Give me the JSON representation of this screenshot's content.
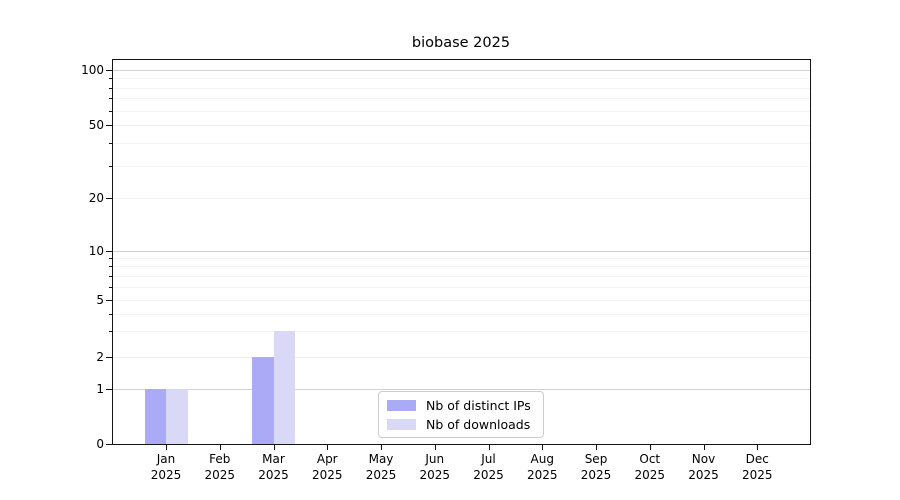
{
  "chart_data": {
    "type": "bar",
    "title": "biobase 2025",
    "categories": [
      "Jan",
      "Feb",
      "Mar",
      "Apr",
      "May",
      "Jun",
      "Jul",
      "Aug",
      "Sep",
      "Oct",
      "Nov",
      "Dec"
    ],
    "category_sublabel": "2025",
    "series": [
      {
        "name": "Nb of distinct IPs",
        "color": "#aaaaf7",
        "values": [
          1,
          0,
          2,
          0,
          0,
          0,
          0,
          0,
          0,
          0,
          0,
          0
        ]
      },
      {
        "name": "Nb of downloads",
        "color": "#d9d9f7",
        "values": [
          1,
          0,
          3,
          0,
          0,
          0,
          0,
          0,
          0,
          0,
          0,
          0
        ]
      }
    ],
    "xlabel": "",
    "ylabel": "",
    "y_axis": {
      "scale": "log-like (0 baseline)",
      "tick_values": [
        0,
        1,
        2,
        5,
        10,
        20,
        50,
        100
      ],
      "tick_labels": [
        "0",
        "1",
        "2",
        "5",
        "10",
        "20",
        "50",
        "100"
      ],
      "minor_values": [
        3,
        4,
        6,
        7,
        8,
        9,
        30,
        40,
        60,
        70,
        80,
        90
      ],
      "ylim": [
        0,
        110
      ]
    },
    "grid": "horizontal major+minor",
    "legend_position": "lower center",
    "colors": {
      "grid_major": "#d2d2d2",
      "grid_mid": "#f0f0f0",
      "grid_minor": "#f4f4f4",
      "spine": "#141414",
      "background": "#ffffff"
    }
  }
}
